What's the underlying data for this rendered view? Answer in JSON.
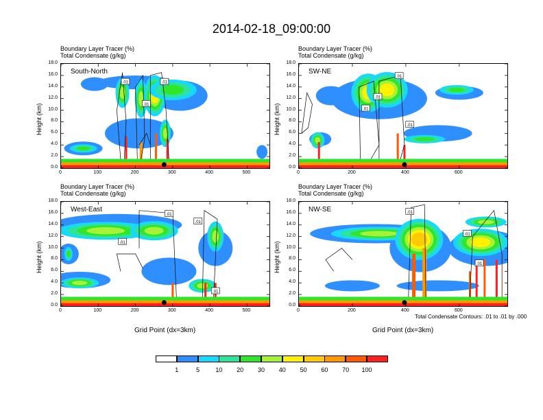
{
  "title": "2014-02-18_09:00:00",
  "chart_data": [
    {
      "type": "heatmap",
      "region": "South-North",
      "labels": [
        "Boundary Layer Tracer   (%)",
        "Total Condensate   (g/kg)"
      ],
      "ylabel": "Height (km)",
      "xlabel": "",
      "xlim": [
        0,
        560
      ],
      "ylim": [
        0,
        18
      ],
      "xticks": [
        "0",
        "100",
        "200",
        "300",
        "400",
        "500"
      ],
      "yticks": [
        "18.0",
        "16.0",
        "14.0",
        "12.0",
        "10.0",
        "8.0",
        "6.0",
        "4.0",
        "2.0",
        "0.0"
      ],
      "contour_labels": [
        ".01",
        ".01",
        ".01"
      ],
      "marker_x": 277
    },
    {
      "type": "heatmap",
      "region": "SW-NE",
      "labels": [
        "Boundary Layer Tracer   (%)",
        "Total Condensate   (g/kg)"
      ],
      "ylabel": "Height (km)",
      "xlabel": "",
      "xlim": [
        0,
        780
      ],
      "ylim": [
        0,
        18
      ],
      "xticks": [
        "0",
        "200",
        "400",
        "600"
      ],
      "yticks": [
        "18.0",
        "16.0",
        "14.0",
        "12.0",
        "10.0",
        "8.0",
        "6.0",
        "4.0",
        "2.0",
        "0.0"
      ],
      "contour_labels": [
        ".01",
        ".01",
        ".01",
        ".01"
      ],
      "marker_x": 395
    },
    {
      "type": "heatmap",
      "region": "West-East",
      "labels": [
        "Boundary Layer Tracer   (%)",
        "Total Condensate   (g/kg)"
      ],
      "ylabel": "Height (km)",
      "xlabel": "Grid Point (dx=3km)",
      "xlim": [
        0,
        560
      ],
      "ylim": [
        0,
        18
      ],
      "xticks": [
        "0",
        "100",
        "200",
        "300",
        "400",
        "500"
      ],
      "yticks": [
        "18.0",
        "16.0",
        "14.0",
        "12.0",
        "10.0",
        "8.0",
        "6.0",
        "4.0",
        "2.0",
        "0.0"
      ],
      "contour_labels": [
        ".01",
        ".01",
        ".01",
        ".01"
      ],
      "marker_x": 277
    },
    {
      "type": "heatmap",
      "region": "NW-SE",
      "labels": [
        "Boundary Layer Tracer   (%)",
        "Total Condensate   (g/kg)"
      ],
      "ylabel": "Height (km)",
      "xlabel": "Grid Point (dx=3km)",
      "xlim": [
        0,
        780
      ],
      "ylim": [
        0,
        18
      ],
      "xticks": [
        "0",
        "200",
        "400",
        "600"
      ],
      "yticks": [
        "18.0",
        "16.0",
        "14.0",
        "12.0",
        "10.0",
        "8.0",
        "6.0",
        "4.0",
        "2.0",
        "0.0"
      ],
      "contour_labels": [
        ".01",
        ".01",
        ".01"
      ],
      "contour_note": "Total Condensate Contours: .01 to .01 by .000",
      "marker_x": 395
    }
  ],
  "colorbar": {
    "levels": [
      "1",
      "5",
      "10",
      "20",
      "30",
      "40",
      "50",
      "60",
      "70",
      "100"
    ],
    "colors": [
      "#ffffff",
      "#2f8fff",
      "#17d8ff",
      "#2ee39c",
      "#2fe62a",
      "#a6f238",
      "#fff200",
      "#ffcb00",
      "#ff9900",
      "#ff5a00",
      "#ff2020"
    ]
  }
}
